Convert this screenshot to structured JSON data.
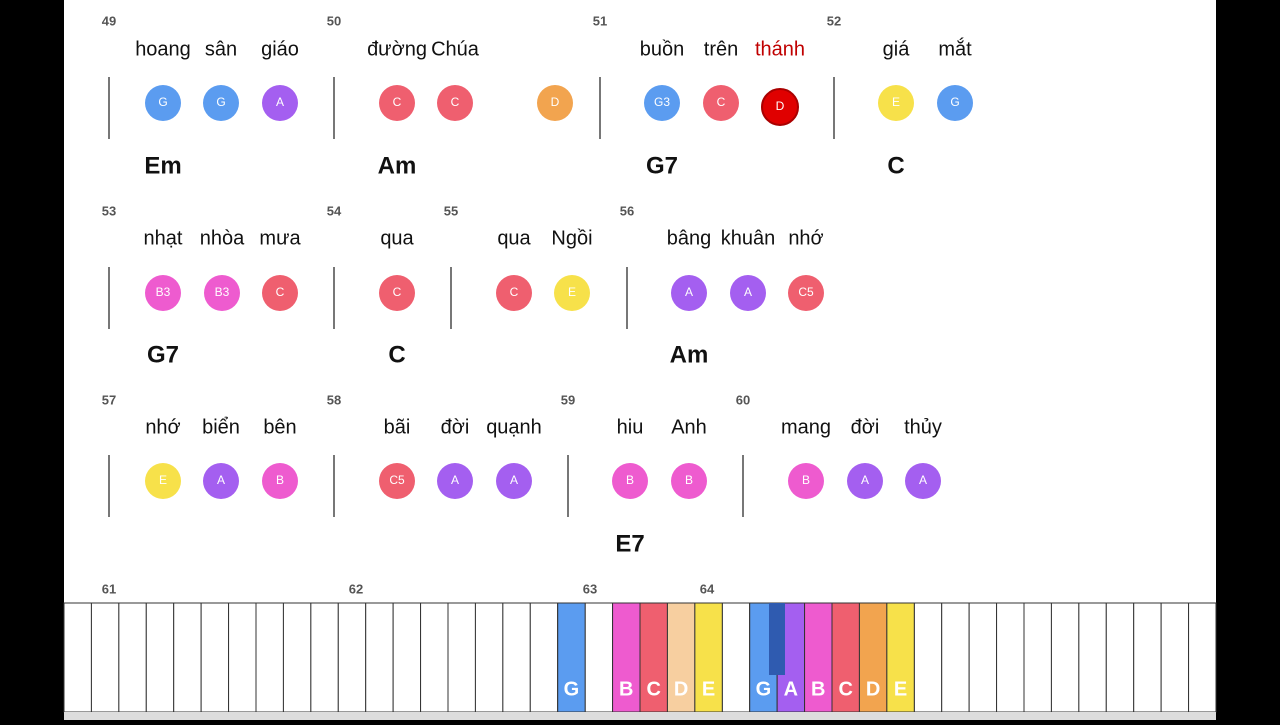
{
  "sheet": {
    "rows": [
      {
        "measures": [
          {
            "number": "49",
            "chord": "Em",
            "notes": [
              {
                "lyric": "hoang",
                "note": "G",
                "color": "#5b9cf0"
              },
              {
                "lyric": "sân",
                "note": "G",
                "color": "#5b9cf0"
              },
              {
                "lyric": "giáo",
                "note": "A",
                "color": "#a45ff0"
              }
            ]
          },
          {
            "number": "50",
            "chord": "Am",
            "notes": [
              {
                "lyric": "đường",
                "note": "C",
                "color": "#ef5f6f"
              },
              {
                "lyric": "Chúa",
                "note": "C",
                "color": "#ef5f6f"
              },
              {
                "note": "D",
                "color": "#f2a44f"
              }
            ]
          },
          {
            "number": "51",
            "chord": "G7",
            "notes": [
              {
                "lyric": "buồn",
                "note": "G3",
                "color": "#5b9cf0"
              },
              {
                "lyric": "trên",
                "note": "C",
                "color": "#ef5f6f"
              },
              {
                "lyric": "thánh",
                "note": "D",
                "color": "#e00000",
                "active": true
              }
            ]
          },
          {
            "number": "52",
            "chord": "C",
            "notes": [
              {
                "lyric": "giá",
                "note": "E",
                "color": "#f7e14a"
              },
              {
                "lyric": "mắt",
                "note": "G",
                "color": "#5b9cf0"
              }
            ]
          }
        ]
      },
      {
        "measures": [
          {
            "number": "53",
            "chord": "G7",
            "notes": [
              {
                "lyric": "nhạt",
                "note": "B3",
                "color": "#ee5bcf"
              },
              {
                "lyric": "nhòa",
                "note": "B3",
                "color": "#ee5bcf"
              },
              {
                "lyric": "mưa",
                "note": "C",
                "color": "#ef5f6f"
              }
            ]
          },
          {
            "number": "54",
            "chord": "C",
            "notes": [
              {
                "lyric": "qua",
                "note": "C",
                "color": "#ef5f6f"
              }
            ]
          },
          {
            "number": "55",
            "notes": [
              {
                "lyric": "qua",
                "note": "C",
                "color": "#ef5f6f"
              },
              {
                "lyric": "Ngồi",
                "note": "E",
                "color": "#f7e14a"
              }
            ]
          },
          {
            "number": "56",
            "chord": "Am",
            "notes": [
              {
                "lyric": "bâng",
                "note": "A",
                "color": "#a45ff0"
              },
              {
                "lyric": "khuân",
                "note": "A",
                "color": "#a45ff0"
              },
              {
                "lyric": "nhớ",
                "note": "C5",
                "color": "#ef5f6f"
              }
            ]
          }
        ]
      },
      {
        "measures": [
          {
            "number": "57",
            "notes": [
              {
                "lyric": "nhớ",
                "note": "E",
                "color": "#f7e14a"
              },
              {
                "lyric": "biển",
                "note": "A",
                "color": "#a45ff0"
              },
              {
                "lyric": "bên",
                "note": "B",
                "color": "#ee5bcf"
              }
            ]
          },
          {
            "number": "58",
            "notes": [
              {
                "lyric": "bãi",
                "note": "C5",
                "color": "#ef5f6f"
              },
              {
                "lyric": "đời",
                "note": "A",
                "color": "#a45ff0"
              },
              {
                "lyric": "quạnh",
                "note": "A",
                "color": "#a45ff0"
              }
            ]
          },
          {
            "number": "59",
            "chord": "E7",
            "notes": [
              {
                "lyric": "hiu",
                "note": "B",
                "color": "#ee5bcf"
              },
              {
                "lyric": "Anh",
                "note": "B",
                "color": "#ee5bcf"
              }
            ]
          },
          {
            "number": "60",
            "notes": [
              {
                "lyric": "mang",
                "note": "B",
                "color": "#ee5bcf"
              },
              {
                "lyric": "đời",
                "note": "A",
                "color": "#a45ff0"
              },
              {
                "lyric": "thủy",
                "note": "A",
                "color": "#a45ff0"
              }
            ]
          }
        ]
      }
    ]
  },
  "piano": {
    "measure_numbers": [
      "61",
      "62",
      "63",
      "64"
    ],
    "keys": [
      {
        "label": "G",
        "color": "#5b9cf0"
      },
      {
        "label": "B",
        "color": "#ee5bcf"
      },
      {
        "label": "C",
        "color": "#ef5f6f"
      },
      {
        "label": "D",
        "color": "#f7cfa0"
      },
      {
        "label": "E",
        "color": "#f7e14a"
      },
      {
        "label": "G",
        "color": "#5b9cf0"
      },
      {
        "label": "A",
        "color": "#a45ff0"
      },
      {
        "label": "B",
        "color": "#ee5bcf"
      },
      {
        "label": "C",
        "color": "#ef5f6f"
      },
      {
        "label": "D",
        "color": "#f2a44f"
      },
      {
        "label": "E",
        "color": "#f7e14a"
      }
    ]
  }
}
